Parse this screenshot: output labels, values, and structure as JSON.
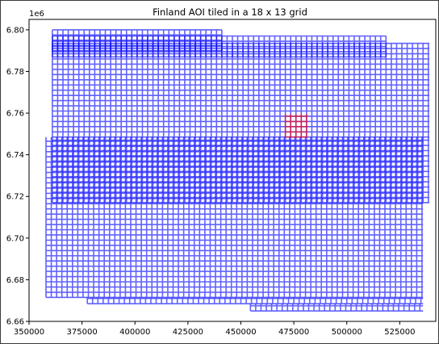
{
  "chart_data": {
    "type": "grid-tiles",
    "title": "Finland AOI tiled in a 18 x 13 grid",
    "xlim": [
      350000,
      542000
    ],
    "ylim": [
      6660000,
      6805000
    ],
    "xticks": [
      350000,
      375000,
      400000,
      425000,
      450000,
      475000,
      500000,
      525000
    ],
    "yticks": [
      6660000,
      6680000,
      6700000,
      6720000,
      6740000,
      6760000,
      6780000,
      6800000
    ],
    "y_offset_label": "1e6",
    "y_tick_labels": [
      "6.66",
      "6.68",
      "6.70",
      "6.72",
      "6.74",
      "6.76",
      "6.78",
      "6.80"
    ],
    "cell_size": 2500,
    "tiles_color": "#0000ff",
    "highlight_color": "#ff0000",
    "tiles": [
      {
        "x0": 361000,
        "x1": 441000,
        "y0": 6790000,
        "y1": 6800000
      },
      {
        "x0": 361000,
        "x1": 518500,
        "y0": 6787000,
        "y1": 6797000
      },
      {
        "x0": 361000,
        "x1": 539000,
        "y0": 6748500,
        "y1": 6793500
      },
      {
        "x0": 361000,
        "x1": 539000,
        "y0": 6717000,
        "y1": 6748500
      },
      {
        "x0": 358000,
        "x1": 536000,
        "y0": 6671500,
        "y1": 6748500
      },
      {
        "x0": 377500,
        "x1": 536000,
        "y0": 6668500,
        "y1": 6671500
      },
      {
        "x0": 454500,
        "x1": 536000,
        "y0": 6665000,
        "y1": 6668500
      }
    ],
    "highlight": {
      "x0": 471000,
      "x1": 481500,
      "y0": 6748500,
      "y1": 6759500
    }
  }
}
